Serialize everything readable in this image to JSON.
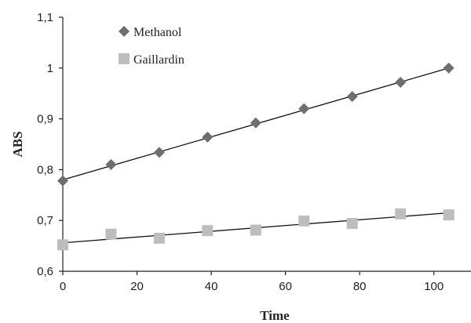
{
  "chart_data": {
    "type": "scatter",
    "xlabel": "Time",
    "ylabel": "ABS",
    "xlim": [
      0,
      110
    ],
    "ylim": [
      0.6,
      1.1
    ],
    "xticks": [
      0,
      20,
      40,
      60,
      80,
      100
    ],
    "xtick_labels": [
      "0",
      "20",
      "40",
      "60",
      "80",
      "100"
    ],
    "yticks": [
      0.6,
      0.7,
      0.8,
      0.9,
      1.0,
      1.1
    ],
    "ytick_labels": [
      "0,6",
      "0,7",
      "0,8",
      "0,9",
      "1",
      "1,1"
    ],
    "grid": false,
    "legend_position": "top-left",
    "series": [
      {
        "name": "Methanol",
        "marker": "diamond",
        "color": "#6e6e6e",
        "x": [
          0,
          13,
          26,
          39,
          52,
          65,
          78,
          91,
          104
        ],
        "y": [
          0.778,
          0.81,
          0.834,
          0.864,
          0.892,
          0.92,
          0.944,
          0.972,
          1.0
        ],
        "trendline": {
          "x": [
            0,
            104
          ],
          "y": [
            0.78,
            1.0
          ]
        }
      },
      {
        "name": "Gaillardin",
        "marker": "square",
        "color": "#bdbdbd",
        "x": [
          0,
          13,
          26,
          39,
          52,
          65,
          78,
          91,
          104
        ],
        "y": [
          0.652,
          0.673,
          0.665,
          0.68,
          0.681,
          0.699,
          0.694,
          0.713,
          0.711
        ],
        "trendline": {
          "x": [
            0,
            104
          ],
          "y": [
            0.656,
            0.715
          ]
        }
      }
    ]
  }
}
